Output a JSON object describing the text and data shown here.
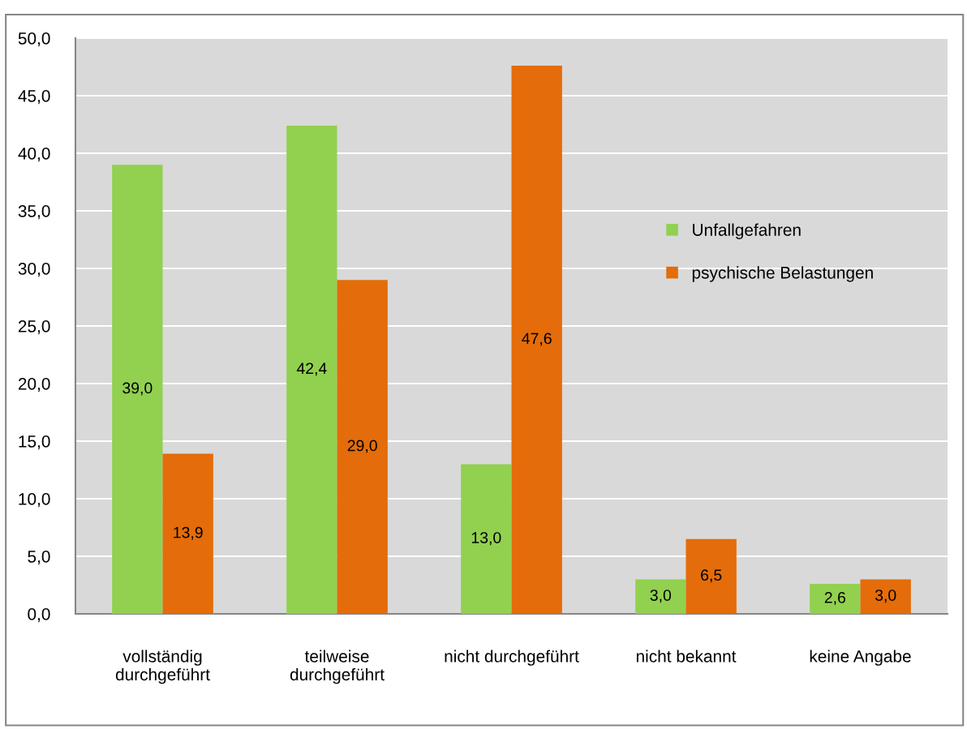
{
  "chart_data": {
    "type": "bar",
    "categories": [
      "vollständig\ndurchgeführt",
      "teilweise\ndurchgeführt",
      "nicht durchgeführt",
      "nicht bekannt",
      "keine Angabe"
    ],
    "series": [
      {
        "name": "Unfallgefahren",
        "color": "#92d050",
        "values": [
          39.0,
          42.4,
          13.0,
          3.0,
          2.6
        ],
        "value_labels": [
          "39,0",
          "42,4",
          "13,0",
          "3,0",
          "2,6"
        ]
      },
      {
        "name": "psychische Belastungen",
        "color": "#e46c0a",
        "values": [
          13.9,
          29.0,
          47.6,
          6.5,
          3.0
        ],
        "value_labels": [
          "13,9",
          "29,0",
          "47,6",
          "6,5",
          "3,0"
        ]
      }
    ],
    "ylim": [
      0,
      50
    ],
    "yticks": [
      {
        "value": 0,
        "label": "0,0"
      },
      {
        "value": 5,
        "label": "5,0"
      },
      {
        "value": 10,
        "label": "10,0"
      },
      {
        "value": 15,
        "label": "15,0"
      },
      {
        "value": 20,
        "label": "20,0"
      },
      {
        "value": 25,
        "label": "25,0"
      },
      {
        "value": 30,
        "label": "30,0"
      },
      {
        "value": 35,
        "label": "35,0"
      },
      {
        "value": 40,
        "label": "40,0"
      },
      {
        "value": 45,
        "label": "45,0"
      },
      {
        "value": 50,
        "label": "50,0"
      }
    ],
    "grid": "y",
    "legend": "right"
  }
}
